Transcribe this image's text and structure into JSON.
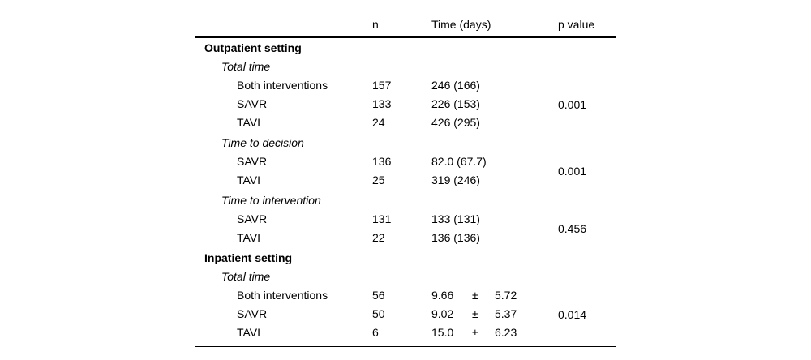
{
  "header": {
    "n": "n",
    "time": "Time (days)",
    "p": "p value"
  },
  "rows": [
    {
      "type": "section",
      "label": "Outpatient setting"
    },
    {
      "type": "subsection",
      "label": "Total time"
    },
    {
      "type": "data",
      "label": "Both interventions",
      "n": "157",
      "time": "246 (166)"
    },
    {
      "type": "data",
      "label": "SAVR",
      "n": "133",
      "time": "226 (153)"
    },
    {
      "type": "data",
      "label": "TAVI",
      "n": "24",
      "time": "426 (295)"
    },
    {
      "type": "subsection",
      "label": "Time to decision"
    },
    {
      "type": "data",
      "label": "SAVR",
      "n": "136",
      "time": "82.0 (67.7)"
    },
    {
      "type": "data",
      "label": "TAVI",
      "n": "25",
      "time": "319 (246)"
    },
    {
      "type": "subsection",
      "label": "Time to intervention"
    },
    {
      "type": "data",
      "label": "SAVR",
      "n": "131",
      "time": "133 (131)"
    },
    {
      "type": "data",
      "label": "TAVI",
      "n": "22",
      "time": "136 (136)"
    },
    {
      "type": "section",
      "label": "Inpatient setting"
    },
    {
      "type": "subsection",
      "label": "Total time"
    },
    {
      "type": "data",
      "label": "Both interventions",
      "n": "56",
      "time_mean": "9.66",
      "time_pm": "±",
      "time_sd": "5.72"
    },
    {
      "type": "data",
      "label": "SAVR",
      "n": "50",
      "time_mean": "9.02",
      "time_pm": "±",
      "time_sd": "5.37"
    },
    {
      "type": "data",
      "label": "TAVI",
      "n": "6",
      "time_mean": "15.0",
      "time_pm": "±",
      "time_sd": "6.23"
    }
  ],
  "p_values": {
    "outpatient_total_time": "0.001",
    "time_to_decision": "0.001",
    "time_to_intervention": "0.456",
    "inpatient_total_time": "0.014"
  }
}
